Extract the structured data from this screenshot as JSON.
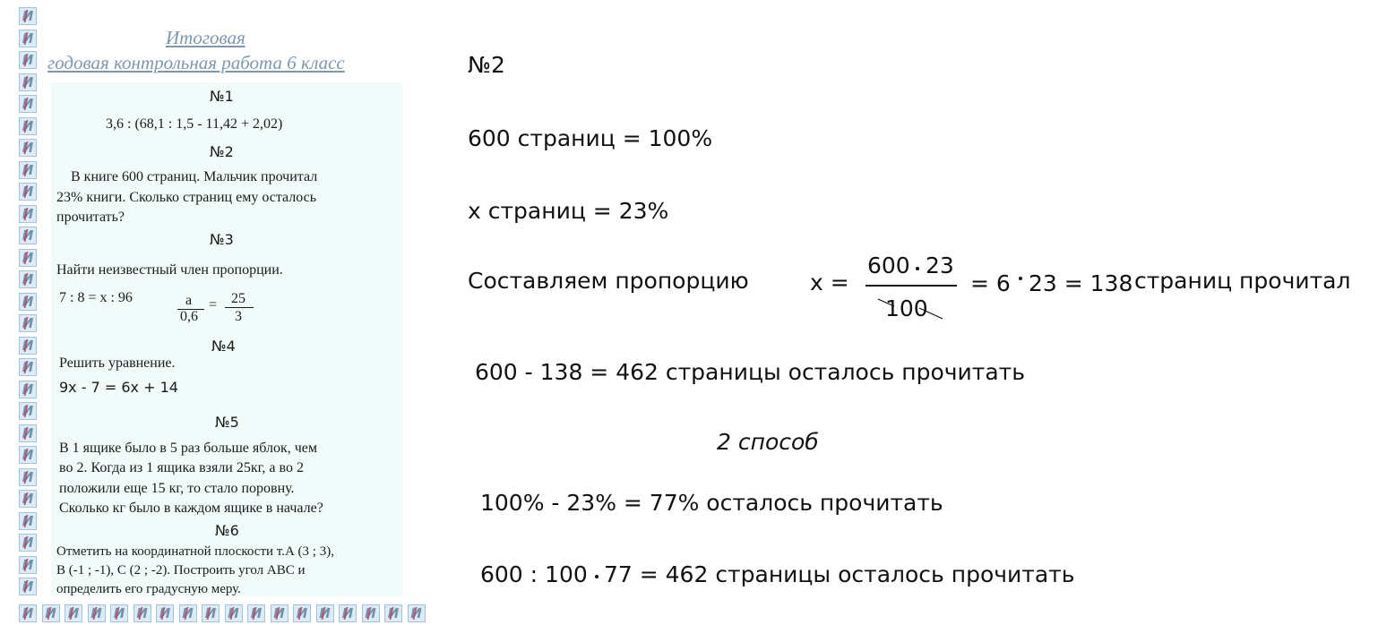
{
  "worksheet": {
    "title_line1": "Итоговая",
    "title_line2": "годовая контрольная работа 6 класс",
    "task1": {
      "label": "№1",
      "expr": "3,6 : (68,1 : 1,5 - 11,42 + 2,02)"
    },
    "task2": {
      "label": "№2",
      "line1": "В книге 600 страниц. Мальчик прочитал",
      "line2": "23% книги. Сколько страниц ему осталось",
      "line3": "прочитать?"
    },
    "task3": {
      "label": "№3",
      "text": "Найти неизвестный член пропорции.",
      "eq": "7 : 8 = x : 96",
      "frac_a_num": "a",
      "frac_a_den": "0,6",
      "eq_sign": "=",
      "frac_b_num": "25",
      "frac_b_den": "3"
    },
    "task4": {
      "label": "№4",
      "text": "Решить уравнение.",
      "eq": "9x - 7 = 6x + 14"
    },
    "task5": {
      "label": "№5",
      "line1": "В 1 ящике было в 5 раз больше яблок, чем",
      "line2": "во 2. Когда из 1 ящика взяли 25кг, а во 2",
      "line3": "положили  еще  15  кг,  то  стало  поровну.",
      "line4": "Сколько кг было в каждом ящике в начале?"
    },
    "task6": {
      "label": "№6",
      "line1": "Отметить на координатной плоскости т.А (3 ; 3),",
      "line2": "В (-1 ; -1),  С (2 ; -2).  Построить  угол  АВС  и",
      "line3": "определить его градусную меру."
    },
    "tile_glyph": "И"
  },
  "solution": {
    "heading": "№2",
    "line1": "600 страниц = 100%",
    "line2": "x страниц = 23%",
    "proportion_label": "Составляем пропорцию",
    "x_eq": "x =",
    "frac_num_a": "600",
    "frac_num_b": "23",
    "frac_den": "100",
    "eq_rest_a": "= 6",
    "eq_rest_b": "23 = 138",
    "result_text": "страниц прочитал",
    "line_remaining": "600 - 138 = 462 страницы осталось прочитать",
    "method2": "2 способ",
    "line_percent": "100% - 23% = 77%  осталось прочитать",
    "line_final_a": "600 : 100",
    "line_final_b": "77 = 462 страницы осталось прочитать"
  }
}
